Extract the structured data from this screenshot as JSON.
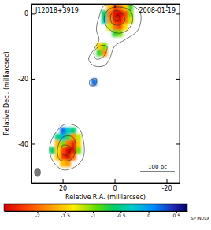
{
  "chart_data": {
    "type": "contour",
    "title": "J12018+3919",
    "subtitle": "2008-01-19",
    "x_label": "Relative R.A. (milliarcsec)",
    "y_label": "Relative Decl. (milliarcsec)",
    "xlim": [
      32,
      -25
    ],
    "ylim": [
      -52,
      3
    ],
    "xticks": [
      20,
      0,
      -20
    ],
    "yticks": [
      0,
      -20,
      -40
    ],
    "grid": false,
    "contours": [
      [
        [
          -7,
          2.5
        ],
        [
          -10,
          0
        ],
        [
          -9,
          -5
        ],
        [
          -4,
          -8
        ],
        [
          0,
          -10
        ],
        [
          2,
          -14
        ],
        [
          4,
          -16
        ],
        [
          8,
          -16
        ],
        [
          10,
          -14
        ],
        [
          8,
          -11
        ],
        [
          6,
          -8
        ],
        [
          7,
          -5
        ],
        [
          6,
          -1
        ],
        [
          4,
          2.5
        ],
        [
          0,
          2.9
        ],
        [
          -3,
          2.9
        ]
      ],
      [
        [
          -6,
          1
        ],
        [
          -7,
          -2
        ],
        [
          -5,
          -5
        ],
        [
          -1,
          -6
        ],
        [
          3,
          -4
        ],
        [
          4,
          -1
        ],
        [
          2,
          1.5
        ],
        [
          -2,
          2
        ]
      ],
      [
        [
          -3,
          0
        ],
        [
          -4,
          -2
        ],
        [
          -2,
          -3.5
        ],
        [
          1,
          -3
        ],
        [
          1.5,
          -0.5
        ],
        [
          -0.5,
          1
        ]
      ],
      [
        [
          -1.5,
          -0.5
        ],
        [
          -2,
          -1.8
        ],
        [
          -0.5,
          -2.3
        ],
        [
          0.3,
          -1.2
        ]
      ],
      [
        [
          3,
          -10
        ],
        [
          4,
          -13
        ],
        [
          7,
          -14
        ],
        [
          8,
          -12
        ],
        [
          6,
          -10
        ]
      ],
      [
        [
          7,
          -20
        ],
        [
          7.5,
          -22
        ],
        [
          9.5,
          -22
        ],
        [
          9.5,
          -20.5
        ]
      ],
      [
        [
          14,
          -35
        ],
        [
          12,
          -39
        ],
        [
          12,
          -44
        ],
        [
          15,
          -47
        ],
        [
          20,
          -48
        ],
        [
          24,
          -45
        ],
        [
          25,
          -41
        ],
        [
          23,
          -37
        ],
        [
          19,
          -34
        ]
      ],
      [
        [
          16,
          -38
        ],
        [
          15,
          -42
        ],
        [
          17,
          -45
        ],
        [
          21,
          -45
        ],
        [
          22,
          -42
        ],
        [
          20,
          -38
        ]
      ],
      [
        [
          17,
          -41
        ],
        [
          18,
          -43.5
        ],
        [
          20.5,
          -43
        ],
        [
          20,
          -40.5
        ]
      ]
    ],
    "cell_size": 2,
    "spectral_index": [
      {
        "x": [
          -6,
          -4,
          -2,
          0,
          2,
          4
        ],
        "y": [
          2,
          0,
          -2,
          -4,
          -6
        ],
        "values": [
          [
            -0.8,
            -1.5,
            -2.0,
            -2.2,
            -1.6,
            null
          ],
          [
            -1.0,
            -2.2,
            -2.6,
            -2.5,
            -2.0,
            -0.6
          ],
          [
            -1.2,
            -2.0,
            -2.5,
            -2.4,
            -1.8,
            -0.4
          ],
          [
            null,
            -1.4,
            -2.2,
            -2.0,
            -1.2,
            null
          ],
          [
            null,
            null,
            -1.0,
            -0.8,
            null,
            null
          ]
        ]
      },
      {
        "x": [
          4,
          6
        ],
        "y": [
          -10,
          -12
        ],
        "values": [
          [
            -1.0,
            -1.5
          ],
          [
            -1.8,
            -0.8
          ]
        ]
      },
      {
        "x": [
          8
        ],
        "y": [
          -21
        ],
        "values": [
          [
            0.2
          ]
        ]
      },
      {
        "x": [
          14,
          16,
          18,
          20,
          22,
          24
        ],
        "y": [
          -36,
          -38,
          -40,
          -42,
          -44,
          -46
        ],
        "values": [
          [
            null,
            -0.6,
            -0.3,
            0.2,
            null,
            null
          ],
          [
            -1.2,
            -1.8,
            -0.8,
            -0.2,
            -0.5,
            null
          ],
          [
            -1.5,
            -2.4,
            -2.0,
            -1.0,
            -1.6,
            null
          ],
          [
            -1.0,
            -2.5,
            -2.6,
            -2.2,
            -1.4,
            -0.6
          ],
          [
            null,
            -2.0,
            -2.5,
            -2.3,
            -1.5,
            null
          ],
          [
            null,
            null,
            -1.8,
            -1.6,
            null,
            null
          ]
        ]
      }
    ],
    "colorbar": {
      "range": [
        -2.6,
        0.7
      ],
      "ticks": [
        -2,
        -1.5,
        -1,
        -0.5,
        0,
        0.5
      ],
      "label": "SP INDEX"
    },
    "beam": {
      "x": 29.7,
      "y": -48.8,
      "major_axis": 2.6,
      "minor_axis": 2.4
    },
    "scale_bar": {
      "length": 13.3,
      "label": "100 pc"
    }
  }
}
